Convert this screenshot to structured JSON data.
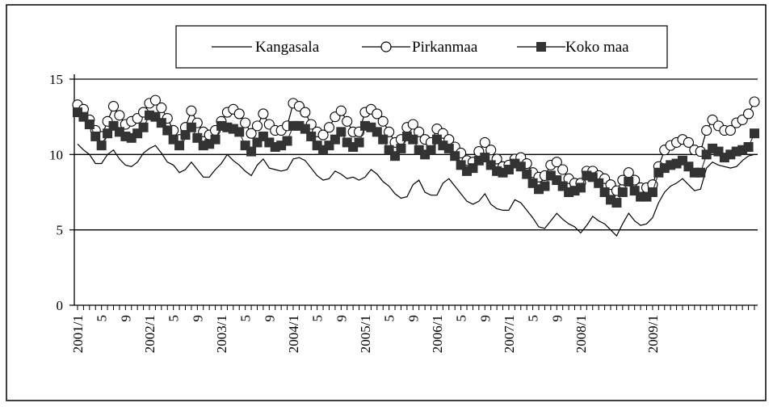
{
  "chart_data": {
    "type": "line",
    "title": "",
    "xlabel": "",
    "ylabel": "",
    "ylim": [
      0,
      15
    ],
    "yticks": [
      "0",
      "5",
      "10",
      "15"
    ],
    "grid": "horizontal",
    "legend_position": "top-center",
    "x_start": "2001/1",
    "x_tick_labels": [
      {
        "month_index": 0,
        "label": "2001/1"
      },
      {
        "month_index": 4,
        "label": "5"
      },
      {
        "month_index": 8,
        "label": "9"
      },
      {
        "month_index": 12,
        "label": "2002/1"
      },
      {
        "month_index": 16,
        "label": "5"
      },
      {
        "month_index": 20,
        "label": "9"
      },
      {
        "month_index": 24,
        "label": "2003/1"
      },
      {
        "month_index": 28,
        "label": "5"
      },
      {
        "month_index": 32,
        "label": "9"
      },
      {
        "month_index": 36,
        "label": "2004/1"
      },
      {
        "month_index": 40,
        "label": "5"
      },
      {
        "month_index": 44,
        "label": "9"
      },
      {
        "month_index": 48,
        "label": "2005/1"
      },
      {
        "month_index": 52,
        "label": "5"
      },
      {
        "month_index": 56,
        "label": "9"
      },
      {
        "month_index": 60,
        "label": "2006/1"
      },
      {
        "month_index": 64,
        "label": "5"
      },
      {
        "month_index": 68,
        "label": "9"
      },
      {
        "month_index": 72,
        "label": "2007/1"
      },
      {
        "month_index": 76,
        "label": "5"
      },
      {
        "month_index": 80,
        "label": "9"
      },
      {
        "month_index": 84,
        "label": "2008/1"
      },
      {
        "month_index": 96,
        "label": "2009/1"
      }
    ],
    "series": [
      {
        "name": "Kangasala",
        "marker": "none",
        "color": "#000000",
        "values": [
          10.7,
          10.3,
          10.0,
          9.4,
          9.4,
          10.0,
          10.3,
          9.7,
          9.3,
          9.2,
          9.5,
          10.1,
          10.4,
          10.6,
          10.1,
          9.5,
          9.3,
          8.8,
          9.0,
          9.5,
          9.0,
          8.5,
          8.5,
          9.0,
          9.4,
          10.0,
          9.6,
          9.3,
          8.9,
          8.6,
          9.3,
          9.7,
          9.1,
          9.0,
          8.9,
          9.0,
          9.7,
          9.8,
          9.6,
          9.1,
          8.6,
          8.3,
          8.4,
          8.9,
          8.7,
          8.4,
          8.5,
          8.3,
          8.5,
          9.0,
          8.7,
          8.2,
          7.9,
          7.4,
          7.1,
          7.2,
          8.0,
          8.3,
          7.5,
          7.3,
          7.3,
          8.1,
          8.4,
          7.9,
          7.4,
          6.9,
          6.7,
          6.9,
          7.4,
          6.7,
          6.4,
          6.3,
          6.3,
          7.0,
          6.8,
          6.3,
          5.8,
          5.2,
          5.1,
          5.6,
          6.1,
          5.7,
          5.4,
          5.2,
          4.8,
          5.3,
          5.9,
          5.6,
          5.4,
          5.0,
          4.6,
          5.4,
          6.1,
          5.6,
          5.3,
          5.4,
          5.8,
          6.8,
          7.5,
          7.9,
          8.1,
          8.4,
          8.0,
          7.6,
          7.7,
          9.1,
          9.5,
          9.3,
          9.2,
          9.1,
          9.2,
          9.6,
          9.9,
          10.0
        ]
      },
      {
        "name": "Pirkanmaa",
        "marker": "circle",
        "color": "#000000",
        "values": [
          13.3,
          13.0,
          12.3,
          11.6,
          11.2,
          12.2,
          13.2,
          12.6,
          12.0,
          12.2,
          12.4,
          12.8,
          13.4,
          13.6,
          13.1,
          12.4,
          11.6,
          11.0,
          11.8,
          12.9,
          12.1,
          11.5,
          11.3,
          11.6,
          12.2,
          12.8,
          13.0,
          12.7,
          12.1,
          11.4,
          11.9,
          12.7,
          12.0,
          11.6,
          11.6,
          11.9,
          13.4,
          13.2,
          12.8,
          12.0,
          11.5,
          11.3,
          11.8,
          12.5,
          12.9,
          12.2,
          11.5,
          11.5,
          12.8,
          13.0,
          12.7,
          12.2,
          11.5,
          10.8,
          11.0,
          11.8,
          12.0,
          11.5,
          11.0,
          10.8,
          11.7,
          11.4,
          11.0,
          10.5,
          10.1,
          9.6,
          9.5,
          10.2,
          10.8,
          10.3,
          9.7,
          9.2,
          9.3,
          9.7,
          9.8,
          9.4,
          8.8,
          8.5,
          8.6,
          9.3,
          9.5,
          9.0,
          8.4,
          8.1,
          8.1,
          8.9,
          8.9,
          8.6,
          8.4,
          8.0,
          7.6,
          8.3,
          8.8,
          8.3,
          7.8,
          7.8,
          8.0,
          9.2,
          10.3,
          10.6,
          10.8,
          11.0,
          10.8,
          10.3,
          10.2,
          11.6,
          12.3,
          11.9,
          11.6,
          11.6,
          12.1,
          12.3,
          12.7,
          13.5
        ]
      },
      {
        "name": "Koko maa",
        "marker": "square",
        "color": "#333333",
        "values": [
          12.8,
          12.5,
          12.0,
          11.2,
          10.6,
          11.4,
          11.9,
          11.5,
          11.2,
          11.1,
          11.4,
          11.8,
          12.6,
          12.5,
          12.1,
          11.6,
          11.0,
          10.6,
          11.3,
          11.8,
          11.1,
          10.6,
          10.7,
          11.0,
          11.9,
          11.8,
          11.7,
          11.5,
          10.6,
          10.2,
          10.8,
          11.2,
          10.8,
          10.5,
          10.6,
          10.9,
          11.9,
          11.9,
          11.7,
          11.2,
          10.6,
          10.3,
          10.6,
          11.0,
          11.5,
          10.8,
          10.5,
          10.8,
          11.9,
          11.8,
          11.5,
          11.0,
          10.3,
          9.9,
          10.4,
          11.2,
          11.0,
          10.3,
          10.0,
          10.3,
          11.0,
          10.6,
          10.4,
          9.9,
          9.3,
          8.9,
          9.1,
          9.6,
          9.8,
          9.3,
          8.9,
          8.8,
          9.0,
          9.4,
          9.2,
          8.7,
          8.1,
          7.7,
          7.9,
          8.6,
          8.3,
          7.9,
          7.5,
          7.6,
          7.8,
          8.6,
          8.5,
          8.1,
          7.5,
          7.0,
          6.8,
          7.5,
          8.2,
          7.6,
          7.2,
          7.2,
          7.5,
          8.8,
          9.1,
          9.3,
          9.4,
          9.6,
          9.2,
          8.8,
          8.8,
          10.0,
          10.4,
          10.2,
          9.8,
          10.0,
          10.2,
          10.3,
          10.5,
          11.4
        ]
      }
    ]
  }
}
